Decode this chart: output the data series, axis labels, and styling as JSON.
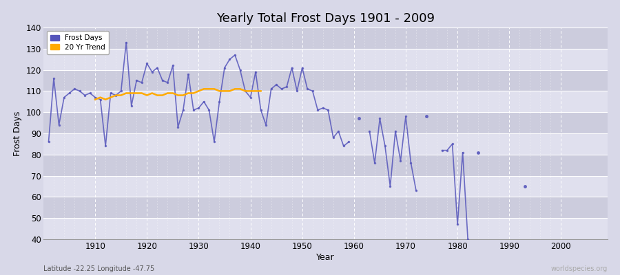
{
  "title": "Yearly Total Frost Days 1901 - 2009",
  "xlabel": "Year",
  "ylabel": "Frost Days",
  "subtitle": "Latitude -22.25 Longitude -47.75",
  "watermark": "worldspecies.org",
  "ylim": [
    40,
    140
  ],
  "xlim": [
    1900,
    2009
  ],
  "yticks": [
    40,
    50,
    60,
    70,
    80,
    90,
    100,
    110,
    120,
    130,
    140
  ],
  "xticks": [
    1910,
    1920,
    1930,
    1940,
    1950,
    1960,
    1970,
    1980,
    1990,
    2000
  ],
  "frost_data": [
    [
      1901,
      86
    ],
    [
      1902,
      116
    ],
    [
      1903,
      94
    ],
    [
      1904,
      107
    ],
    [
      1905,
      109
    ],
    [
      1906,
      111
    ],
    [
      1907,
      110
    ],
    [
      1908,
      108
    ],
    [
      1909,
      109
    ],
    [
      1910,
      107
    ],
    [
      1911,
      106
    ],
    [
      1912,
      84
    ],
    [
      1913,
      109
    ],
    [
      1914,
      108
    ],
    [
      1915,
      110
    ],
    [
      1916,
      133
    ],
    [
      1917,
      103
    ],
    [
      1918,
      115
    ],
    [
      1919,
      114
    ],
    [
      1920,
      123
    ],
    [
      1921,
      119
    ],
    [
      1922,
      121
    ],
    [
      1923,
      115
    ],
    [
      1924,
      114
    ],
    [
      1925,
      122
    ],
    [
      1926,
      93
    ],
    [
      1927,
      101
    ],
    [
      1928,
      118
    ],
    [
      1929,
      101
    ],
    [
      1930,
      102
    ],
    [
      1931,
      105
    ],
    [
      1932,
      101
    ],
    [
      1933,
      86
    ],
    [
      1934,
      105
    ],
    [
      1935,
      121
    ],
    [
      1936,
      125
    ],
    [
      1937,
      127
    ],
    [
      1938,
      120
    ],
    [
      1939,
      110
    ],
    [
      1940,
      107
    ],
    [
      1941,
      119
    ],
    [
      1942,
      101
    ],
    [
      1943,
      94
    ],
    [
      1944,
      111
    ],
    [
      1945,
      113
    ],
    [
      1946,
      111
    ],
    [
      1947,
      112
    ],
    [
      1948,
      121
    ],
    [
      1949,
      110
    ],
    [
      1950,
      121
    ],
    [
      1951,
      111
    ],
    [
      1952,
      110
    ],
    [
      1953,
      101
    ],
    [
      1954,
      102
    ],
    [
      1955,
      101
    ],
    [
      1956,
      88
    ],
    [
      1957,
      91
    ],
    [
      1958,
      84
    ],
    [
      1959,
      86
    ],
    [
      1961,
      97
    ],
    [
      1963,
      91
    ],
    [
      1964,
      76
    ],
    [
      1965,
      97
    ],
    [
      1966,
      84
    ],
    [
      1967,
      65
    ],
    [
      1968,
      91
    ],
    [
      1969,
      77
    ],
    [
      1970,
      98
    ],
    [
      1971,
      76
    ],
    [
      1972,
      63
    ],
    [
      1974,
      98
    ],
    [
      1977,
      82
    ],
    [
      1978,
      82
    ],
    [
      1979,
      85
    ],
    [
      1980,
      47
    ],
    [
      1981,
      81
    ],
    [
      1982,
      40
    ],
    [
      1984,
      81
    ],
    [
      1993,
      65
    ]
  ],
  "trend_data": [
    [
      1910,
      106
    ],
    [
      1911,
      107
    ],
    [
      1912,
      106
    ],
    [
      1913,
      107
    ],
    [
      1914,
      108
    ],
    [
      1915,
      108
    ],
    [
      1916,
      109
    ],
    [
      1917,
      109
    ],
    [
      1918,
      109
    ],
    [
      1919,
      109
    ],
    [
      1920,
      108
    ],
    [
      1921,
      109
    ],
    [
      1922,
      108
    ],
    [
      1923,
      108
    ],
    [
      1924,
      109
    ],
    [
      1925,
      109
    ],
    [
      1926,
      108
    ],
    [
      1927,
      108
    ],
    [
      1928,
      109
    ],
    [
      1929,
      109
    ],
    [
      1930,
      110
    ],
    [
      1931,
      111
    ],
    [
      1932,
      111
    ],
    [
      1933,
      111
    ],
    [
      1934,
      110
    ],
    [
      1935,
      110
    ],
    [
      1936,
      110
    ],
    [
      1937,
      111
    ],
    [
      1938,
      111
    ],
    [
      1939,
      110
    ],
    [
      1940,
      110
    ],
    [
      1941,
      110
    ],
    [
      1942,
      110
    ]
  ],
  "line_color": "#5555bb",
  "line_color_alpha": 0.75,
  "trend_color": "#ffaa00",
  "bg_color": "#d8d8e8",
  "band_light": "#e0e0ee",
  "band_dark": "#ccccdd",
  "title_fontsize": 13,
  "label_fontsize": 9,
  "tick_fontsize": 8.5
}
